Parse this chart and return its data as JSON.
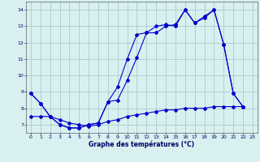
{
  "title": "Graphe des températures (°C)",
  "background_color": "#d8f0f0",
  "grid_color": "#aacccc",
  "line_color": "#0000cc",
  "xlim": [
    -0.5,
    23.5
  ],
  "ylim": [
    6.5,
    14.5
  ],
  "yticks": [
    7,
    8,
    9,
    10,
    11,
    12,
    13,
    14
  ],
  "xticks": [
    0,
    1,
    2,
    3,
    4,
    5,
    6,
    7,
    8,
    9,
    10,
    11,
    12,
    13,
    14,
    15,
    16,
    17,
    18,
    19,
    20,
    21,
    22,
    23
  ],
  "line1_x": [
    0,
    1,
    2,
    3,
    4,
    5,
    6,
    7,
    8,
    9,
    10,
    11,
    12,
    13,
    14,
    15,
    16,
    17,
    18,
    19,
    20,
    21,
    22
  ],
  "line1_y": [
    8.9,
    8.3,
    7.5,
    7.0,
    6.8,
    6.8,
    7.0,
    7.1,
    8.4,
    8.5,
    9.7,
    11.1,
    12.6,
    12.6,
    13.0,
    13.1,
    14.0,
    13.2,
    13.5,
    14.0,
    11.9,
    8.9,
    8.1
  ],
  "line2_x": [
    0,
    1,
    2,
    3,
    4,
    5,
    6,
    7,
    8,
    9,
    10,
    11,
    12,
    13,
    14,
    15,
    16,
    17,
    18,
    19,
    20,
    21,
    22
  ],
  "line2_y": [
    8.9,
    8.3,
    7.5,
    7.0,
    6.8,
    6.8,
    7.0,
    7.1,
    8.4,
    9.3,
    11.0,
    12.5,
    12.6,
    13.0,
    13.1,
    13.0,
    14.0,
    13.2,
    13.6,
    14.0,
    11.9,
    8.9,
    8.1
  ],
  "line3_x": [
    0,
    1,
    2,
    3,
    4,
    5,
    6,
    7,
    8,
    9,
    10,
    11,
    12,
    13,
    14,
    15,
    16,
    17,
    18,
    19,
    20,
    21,
    22
  ],
  "line3_y": [
    7.5,
    7.5,
    7.5,
    7.3,
    7.1,
    7.0,
    6.9,
    7.0,
    7.2,
    7.3,
    7.5,
    7.6,
    7.7,
    7.8,
    7.9,
    7.9,
    8.0,
    8.0,
    8.0,
    8.1,
    8.1,
    8.1,
    8.1
  ]
}
